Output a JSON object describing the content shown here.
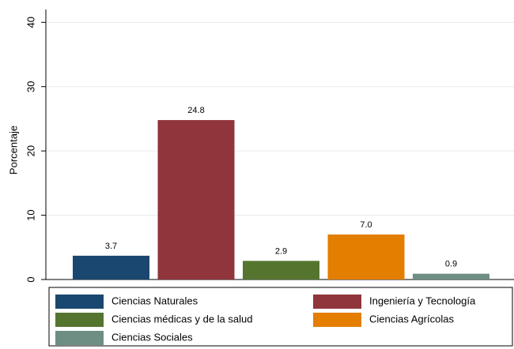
{
  "chart_data": {
    "type": "bar",
    "y_label": "Porcentaje",
    "series": [
      {
        "name": "Ciencias Naturales",
        "color": "#1a476f",
        "values": [
          3.7
        ],
        "value_labels": [
          "3.7"
        ]
      },
      {
        "name": "Ingeniería y Tecnología",
        "color": "#90353b",
        "values": [
          24.8
        ],
        "value_labels": [
          "24.8"
        ]
      },
      {
        "name": "Ciencias médicas y de la salud",
        "color": "#55752f",
        "values": [
          2.9
        ],
        "value_labels": [
          "2.9"
        ]
      },
      {
        "name": "Ciencias Agrícolas",
        "color": "#e37e00",
        "values": [
          7.0
        ],
        "value_labels": [
          "7.0"
        ]
      },
      {
        "name": "Ciencias Sociales",
        "color": "#6e8e84",
        "values": [
          0.9
        ],
        "value_labels": [
          "0.9"
        ]
      }
    ],
    "ylim": [
      0,
      42
    ],
    "yticks": [
      0,
      10,
      20,
      30,
      40
    ],
    "grid": true,
    "legend": "bottom"
  }
}
